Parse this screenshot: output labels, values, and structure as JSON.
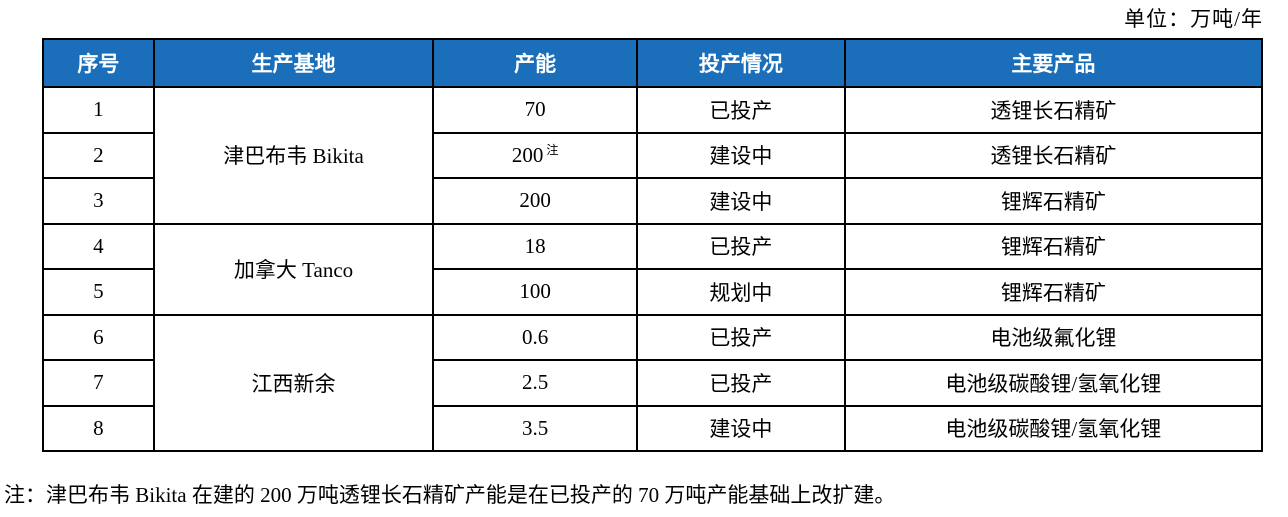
{
  "unit_label": "单位：万吨/年",
  "table": {
    "headers": [
      "序号",
      "生产基地",
      "产能",
      "投产情况",
      "主要产品"
    ],
    "rows": [
      {
        "no": "1",
        "base": "津巴布韦 Bikita",
        "base_span": 3,
        "capacity": "70",
        "status": "已投产",
        "product": "透锂长石精矿"
      },
      {
        "no": "2",
        "capacity": "200",
        "capacity_note": "注",
        "status": "建设中",
        "product": "透锂长石精矿"
      },
      {
        "no": "3",
        "capacity": "200",
        "status": "建设中",
        "product": "锂辉石精矿"
      },
      {
        "no": "4",
        "base": "加拿大 Tanco",
        "base_span": 2,
        "capacity": "18",
        "status": "已投产",
        "product": "锂辉石精矿"
      },
      {
        "no": "5",
        "capacity": "100",
        "status": "规划中",
        "product": "锂辉石精矿"
      },
      {
        "no": "6",
        "base": "江西新余",
        "base_span": 3,
        "capacity": "0.6",
        "status": "已投产",
        "product": "电池级氟化锂"
      },
      {
        "no": "7",
        "capacity": "2.5",
        "status": "已投产",
        "product": "电池级碳酸锂/氢氧化锂"
      },
      {
        "no": "8",
        "capacity": "3.5",
        "status": "建设中",
        "product": "电池级碳酸锂/氢氧化锂"
      }
    ]
  },
  "footnote": "注：津巴布韦 Bikita 在建的 200 万吨透锂长石精矿产能是在已投产的 70 万吨产能基础上改扩建。",
  "colors": {
    "header_bg": "#1B6FBA",
    "header_text": "#FFFFFF",
    "border": "#000000"
  }
}
